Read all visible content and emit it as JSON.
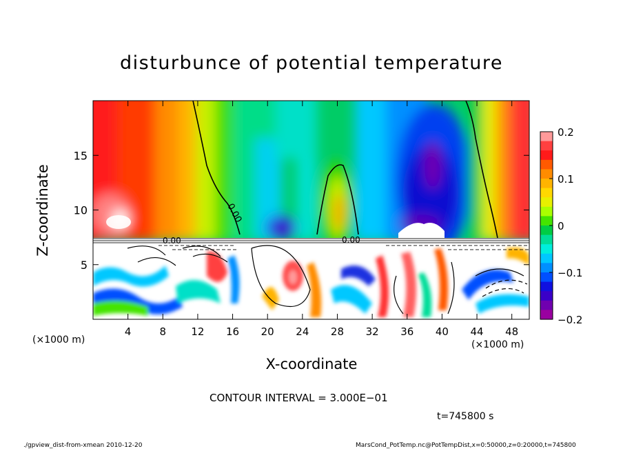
{
  "chart_data": {
    "type": "heatmap",
    "title": "disturbunce of potential temperature",
    "xlabel": "X-coordinate",
    "ylabel": "Z-coordinate",
    "x_unit": "(×1000 m)",
    "xlim": [
      0,
      50
    ],
    "ylim": [
      0,
      20
    ],
    "x_ticks": [
      4,
      8,
      12,
      16,
      20,
      24,
      28,
      32,
      36,
      40,
      44,
      48
    ],
    "y_ticks": [
      5,
      10,
      15
    ],
    "colorbar": {
      "range": [
        -0.2,
        0.2
      ],
      "tick_values": [
        0.2,
        0.1,
        0,
        -0.1,
        -0.2
      ],
      "tick_labels": [
        "0.2",
        "0.1",
        "0",
        "−0.1",
        "−0.2"
      ],
      "colors": [
        "#ff9a9a",
        "#ff4040",
        "#ff1a1a",
        "#ff5a00",
        "#ff8c00",
        "#ffb400",
        "#ffd800",
        "#e8f000",
        "#aaff00",
        "#44e400",
        "#00cc44",
        "#00dd99",
        "#00eedd",
        "#00c8ff",
        "#0090ff",
        "#0050ff",
        "#1010e0",
        "#3a00c8",
        "#7000b0",
        "#9a00a0"
      ]
    },
    "contour_label": "0.00",
    "contour_interval": "CONTOUR INTERVAL = 3.000E−01"
  },
  "time_label": "t=745800 s",
  "footer": {
    "left": "./gpview_dist-from-xmean  2010-12-20",
    "right": "MarsCond_PotTemp.nc@PotTempDist,x=0:50000,z=0:20000,t=745800"
  }
}
